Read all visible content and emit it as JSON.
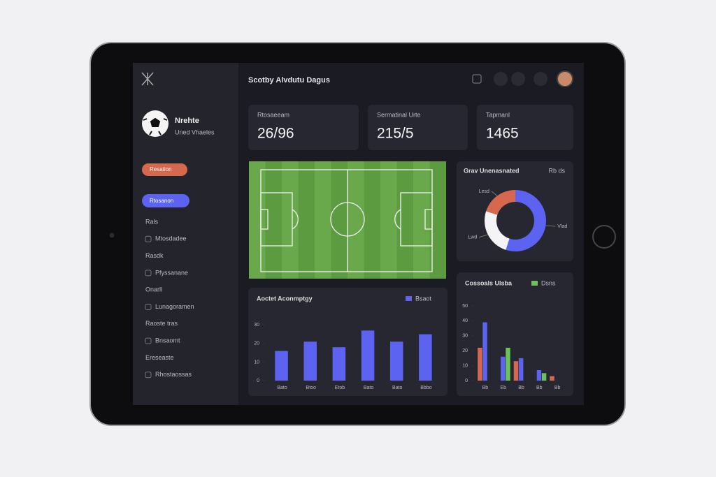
{
  "header": {
    "title": "Scotby Alvdutu Dagus"
  },
  "sidebar": {
    "team_name": "Nrehte",
    "team_sub": "Uned Vhaeles",
    "buttons": [
      "Resation",
      "Rtosanon"
    ],
    "items": [
      "Rals",
      "Mtosdadee",
      "Rasdk",
      "Pfyssanane",
      "Onarll",
      "Lunagoramen",
      "Raoste tras",
      "Bnsaomt",
      "Ereseaste",
      "Rhostaossas"
    ]
  },
  "stats": [
    {
      "label": "Rtosaeeam",
      "value": "26/96"
    },
    {
      "label": "Sermatinal Urte",
      "value": "215/5"
    },
    {
      "label": "Tapmanl",
      "value": "1465"
    }
  ],
  "chart_data": [
    {
      "type": "pie",
      "title": "Grav Unenasnated",
      "subtitle": "Rb ds",
      "categories": [
        "Vlad",
        "Lwd",
        "Lesd"
      ],
      "values": [
        55,
        25,
        20
      ],
      "colors": [
        "#5b63f0",
        "#f4f4f6",
        "#d5684d"
      ]
    },
    {
      "type": "bar",
      "title": "Aoctet Aconmptgy",
      "categories": [
        "Bato",
        "Btoo",
        "Etob",
        "Bato",
        "Bato",
        "Bbbo"
      ],
      "series": [
        {
          "name": "Bsaot",
          "color": "#5b63f0",
          "values": [
            16,
            21,
            18,
            27,
            21,
            25
          ]
        }
      ],
      "ylim": [
        0,
        32
      ],
      "yticks": [
        0,
        10,
        20,
        30
      ]
    },
    {
      "type": "bar",
      "title": "Cossoals Ulsba",
      "categories": [
        "Bb",
        "Eb",
        "Bb",
        "Bb",
        "Bb"
      ],
      "series": [
        {
          "color": "#d5684d",
          "values": [
            22,
            null,
            13,
            null,
            3
          ]
        },
        {
          "color": "#5b63f0",
          "values": [
            39,
            16,
            15,
            7,
            null
          ]
        },
        {
          "name": "Dsns",
          "color": "#6cc25a",
          "values": [
            null,
            22,
            null,
            5,
            null
          ]
        }
      ],
      "ylim": [
        0,
        50
      ],
      "yticks": [
        0,
        10,
        20,
        30,
        40,
        50
      ]
    }
  ]
}
